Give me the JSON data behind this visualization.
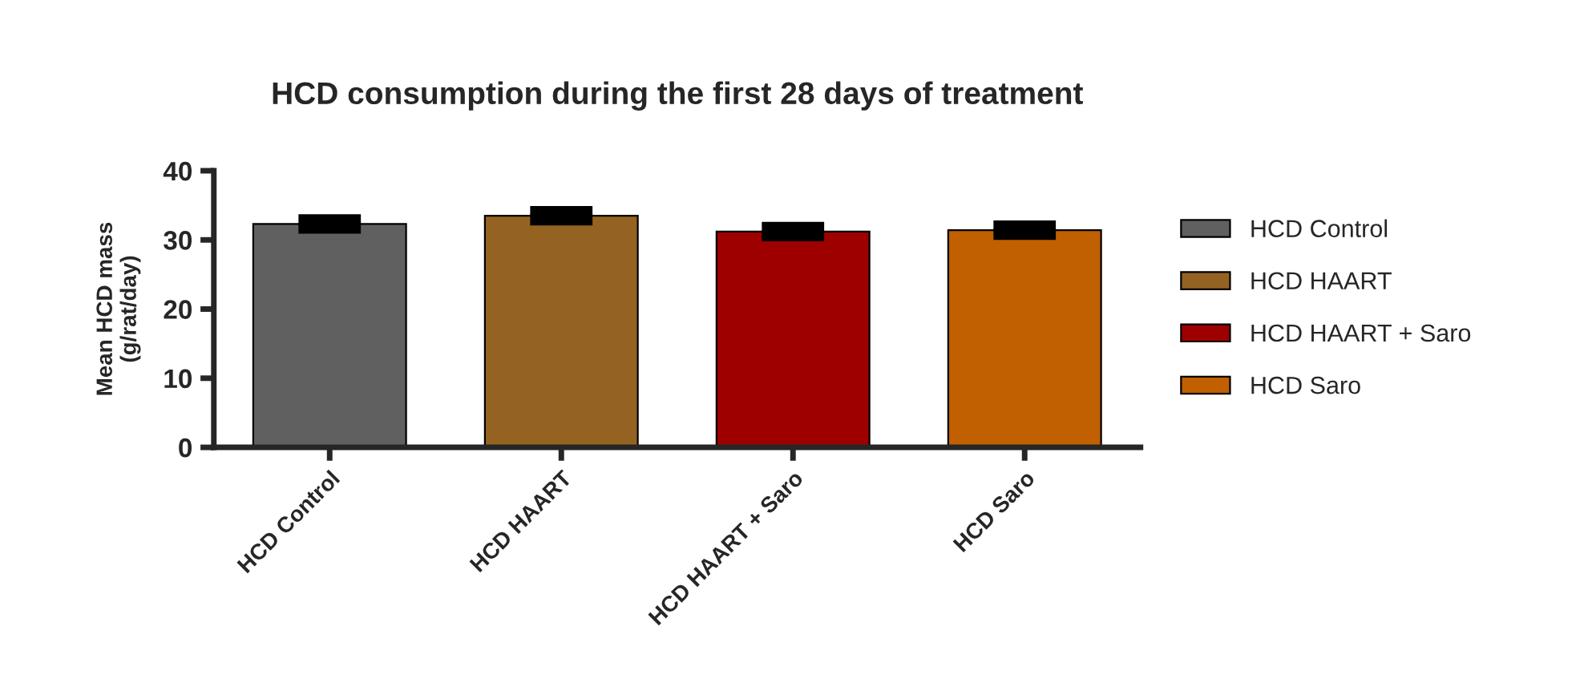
{
  "chart_data": {
    "type": "bar",
    "title": "HCD consumption during the first 28 days of treatment",
    "ylabel": "Mean HCD mass\n(g/rat/day)",
    "categories": [
      "HCD Control",
      "HCD HAART",
      "HCD HAART + Saro",
      "HCD Saro"
    ],
    "series": [
      {
        "name": "HCD Control",
        "color": "#606060",
        "values": [
          32.3,
          null,
          null,
          null
        ],
        "errors": [
          0.6,
          null,
          null,
          null
        ]
      },
      {
        "name": "HCD HAART",
        "color": "#956321",
        "values": [
          null,
          33.5,
          null,
          null
        ],
        "errors": [
          null,
          0.6,
          null,
          null
        ]
      },
      {
        "name": "HCD HAART + Saro",
        "color": "#9e0000",
        "values": [
          null,
          null,
          31.2,
          null
        ],
        "errors": [
          null,
          null,
          0.6,
          null
        ]
      },
      {
        "name": "HCD Saro",
        "color": "#c06000",
        "values": [
          null,
          null,
          null,
          31.4
        ],
        "errors": [
          null,
          null,
          null,
          0.6
        ]
      }
    ],
    "ylim": [
      0,
      40
    ],
    "yticks": [
      0,
      10,
      20,
      30,
      40
    ],
    "grid": false,
    "legend": "right"
  }
}
